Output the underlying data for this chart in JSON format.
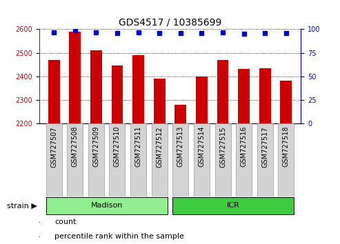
{
  "title": "GDS4517 / 10385699",
  "samples": [
    "GSM727507",
    "GSM727508",
    "GSM727509",
    "GSM727510",
    "GSM727511",
    "GSM727512",
    "GSM727513",
    "GSM727514",
    "GSM727515",
    "GSM727516",
    "GSM727517",
    "GSM727518"
  ],
  "counts": [
    2470,
    2590,
    2510,
    2445,
    2490,
    2390,
    2280,
    2400,
    2470,
    2430,
    2435,
    2380
  ],
  "percentiles": [
    97,
    99,
    97,
    96,
    97,
    96,
    96,
    96,
    97,
    95,
    96,
    96
  ],
  "bar_color": "#cc0000",
  "dot_color": "#0000cc",
  "ylim_left": [
    2200,
    2600
  ],
  "ylim_right": [
    0,
    100
  ],
  "yticks_left": [
    2200,
    2300,
    2400,
    2500,
    2600
  ],
  "yticks_right": [
    0,
    25,
    50,
    75,
    100
  ],
  "groups": [
    {
      "label": "Madison",
      "start": 0,
      "end": 5,
      "color": "#90ee90"
    },
    {
      "label": "ICR",
      "start": 6,
      "end": 11,
      "color": "#3dcc3d"
    }
  ],
  "legend_items": [
    {
      "label": "count",
      "color": "#cc0000"
    },
    {
      "label": "percentile rank within the sample",
      "color": "#0000cc"
    }
  ],
  "bar_width": 0.55,
  "title_fontsize": 10,
  "tick_fontsize": 7,
  "group_fontsize": 8,
  "legend_fontsize": 8,
  "background_color": "#ffffff",
  "tick_label_bg": "#d3d3d3"
}
